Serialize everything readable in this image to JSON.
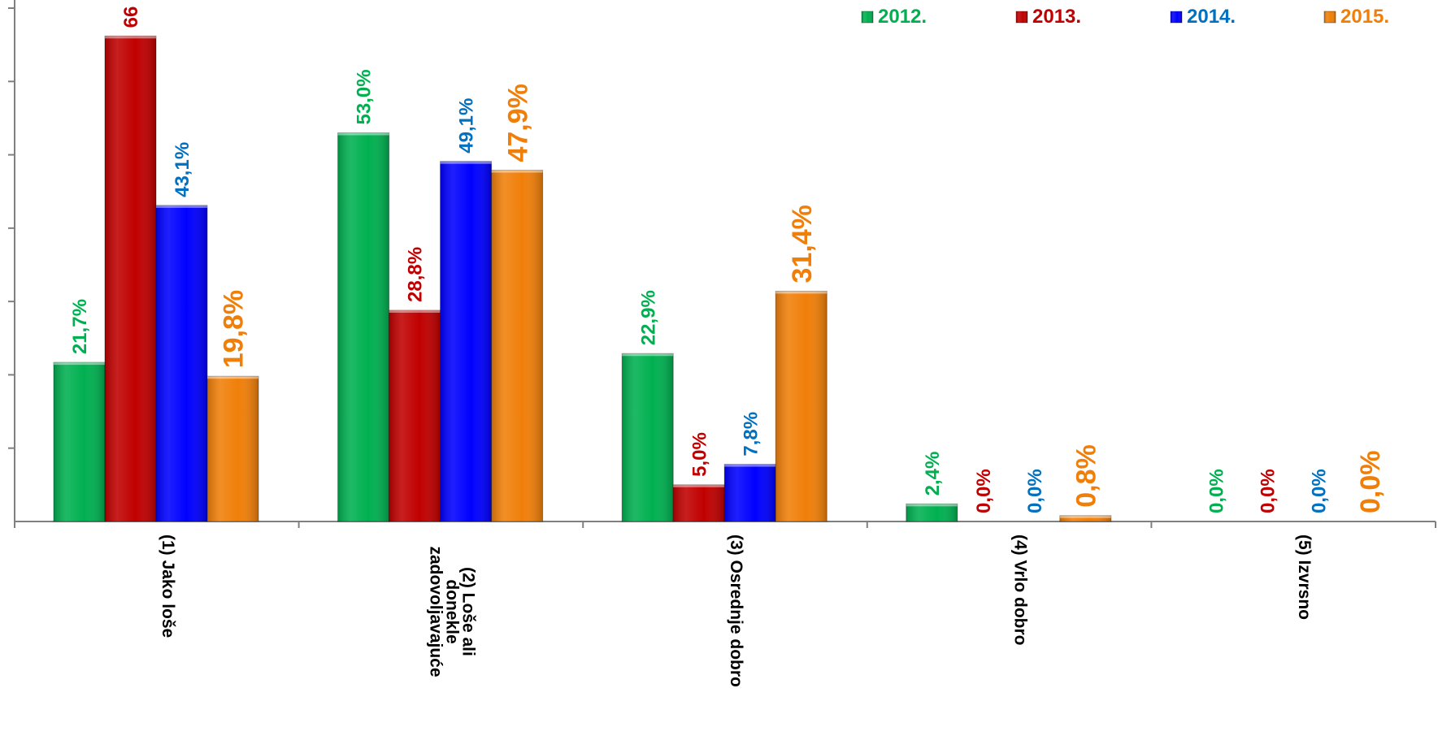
{
  "colors": {
    "2012": "#00b050",
    "2013": "#c00000",
    "2014": "#0000ff",
    "2015": "#f07f09",
    "label2014": "#0070c0",
    "axis": "#808080",
    "text": "#000000"
  },
  "chart_data": {
    "type": "bar",
    "categories": [
      [
        "(1) Jako loše"
      ],
      [
        "(2)  Loše ali",
        "donekle",
        "zadovoljavajuće"
      ],
      [
        "(3)  Osrednje dobro"
      ],
      [
        "(4)  Vrlo dobro"
      ],
      [
        "(5) Izvrsno"
      ]
    ],
    "series": [
      {
        "name": "2012.",
        "values": [
          21.7,
          53.0,
          22.9,
          2.4,
          0.0
        ],
        "labels": [
          "21,7%",
          "53,0%",
          "22,9%",
          "2,4%",
          "0,0%"
        ]
      },
      {
        "name": "2013.",
        "values": [
          66.2,
          28.8,
          5.0,
          0.0,
          0.0
        ],
        "labels": [
          "66",
          "28,8%",
          "5,0%",
          "0,0%",
          "0,0%"
        ]
      },
      {
        "name": "2014.",
        "values": [
          43.1,
          49.1,
          7.8,
          0.0,
          0.0
        ],
        "labels": [
          "43,1%",
          "49,1%",
          "7,8%",
          "0,0%",
          "0,0%"
        ]
      },
      {
        "name": "2015.",
        "values": [
          19.8,
          47.9,
          31.4,
          0.8,
          0.0
        ],
        "labels": [
          "19,8%",
          "47,9%",
          "31,4%",
          "0,8%",
          "0,0%"
        ]
      }
    ],
    "ylim": [
      0,
      70
    ],
    "title": "",
    "xlabel": "",
    "ylabel": "",
    "grid": false,
    "legend_position": "top-right"
  }
}
